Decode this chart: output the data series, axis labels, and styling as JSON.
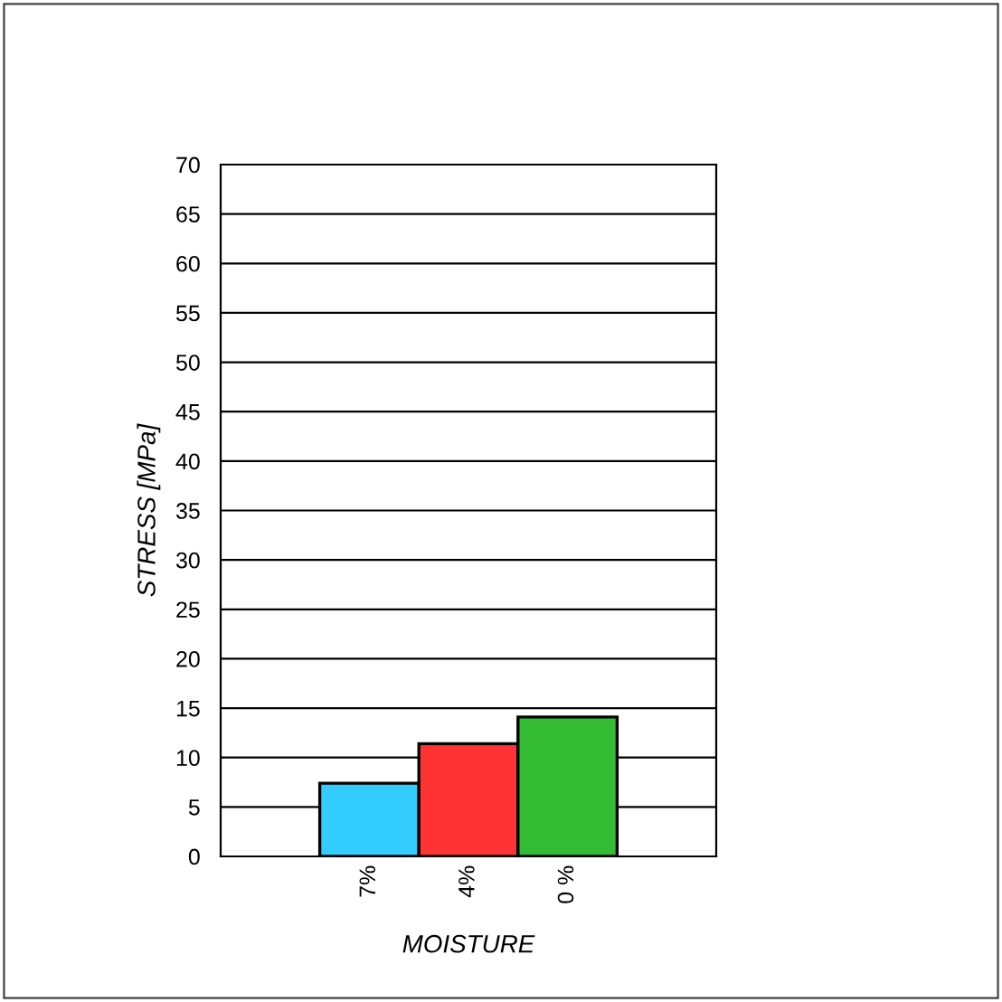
{
  "chart_data": {
    "type": "bar",
    "categories": [
      "7%",
      "4%",
      "0 %"
    ],
    "values": [
      7.4,
      11.4,
      14.1
    ],
    "colors": [
      "#33ccff",
      "#ff3333",
      "#33bb33"
    ],
    "xlabel": "MOISTURE",
    "ylabel": "STRESS [MPa]",
    "ylim": [
      0,
      70
    ],
    "yticks": [
      0,
      5,
      10,
      15,
      20,
      25,
      30,
      35,
      40,
      45,
      50,
      55,
      60,
      65,
      70
    ],
    "grid": "y"
  }
}
